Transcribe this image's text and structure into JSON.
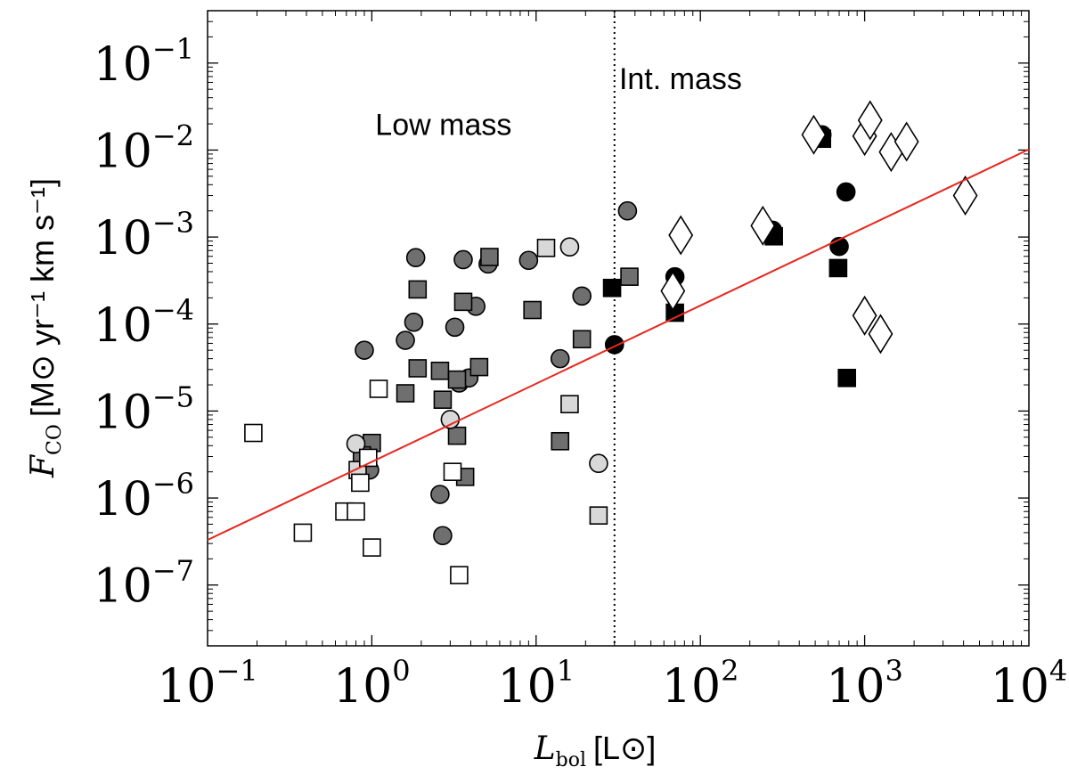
{
  "chart_data": {
    "type": "scatter",
    "xscale": "log",
    "yscale": "log",
    "xlim": [
      0.1,
      10000
    ],
    "ylim": [
      2e-08,
      0.4
    ],
    "xlabel": {
      "main": "L",
      "sub": "bol",
      "unit": "[L⊙]"
    },
    "ylabel": {
      "main": "F",
      "sub": "CO",
      "unit": "[M⊙ yr⁻¹ km s⁻¹]"
    },
    "x_ticks": [
      {
        "value": 0.1,
        "base": "10",
        "exp": "−1"
      },
      {
        "value": 1,
        "base": "10",
        "exp": "0"
      },
      {
        "value": 10,
        "base": "10",
        "exp": "1"
      },
      {
        "value": 100,
        "base": "10",
        "exp": "2"
      },
      {
        "value": 1000,
        "base": "10",
        "exp": "3"
      },
      {
        "value": 10000,
        "base": "10",
        "exp": "4"
      }
    ],
    "y_ticks": [
      {
        "value": 1e-07,
        "base": "10",
        "exp": "−7"
      },
      {
        "value": 1e-06,
        "base": "10",
        "exp": "−6"
      },
      {
        "value": 1e-05,
        "base": "10",
        "exp": "−5"
      },
      {
        "value": 0.0001,
        "base": "10",
        "exp": "−4"
      },
      {
        "value": 0.001,
        "base": "10",
        "exp": "−3"
      },
      {
        "value": 0.01,
        "base": "10",
        "exp": "−2"
      },
      {
        "value": 0.1,
        "base": "10",
        "exp": "−1"
      }
    ],
    "divider": {
      "x": 30
    },
    "annotations": [
      {
        "id": "low-mass-label",
        "text": "Low mass",
        "x": 1.05,
        "y": 0.015
      },
      {
        "id": "int-mass-label",
        "text": "Int. mass",
        "x": 32,
        "y": 0.05
      }
    ],
    "fit_line": {
      "name": "fit",
      "color": "#e8271e",
      "x": [
        0.1,
        10000
      ],
      "y": [
        3.3e-07,
        0.0102
      ]
    },
    "series": [
      {
        "name": "low-mass-circles-gray",
        "marker": "circle",
        "fill": "#6f6f6f",
        "stroke": "#000000",
        "points": [
          {
            "x": 0.9,
            "y": 5e-05
          },
          {
            "x": 1.6,
            "y": 6.5e-05
          },
          {
            "x": 1.8,
            "y": 0.000105
          },
          {
            "x": 1.85,
            "y": 0.00058
          },
          {
            "x": 3.2,
            "y": 9.2e-05
          },
          {
            "x": 3.6,
            "y": 0.00055
          },
          {
            "x": 4.3,
            "y": 0.00016
          },
          {
            "x": 5.1,
            "y": 0.00049
          },
          {
            "x": 9,
            "y": 0.00054
          },
          {
            "x": 14,
            "y": 4e-05
          },
          {
            "x": 19,
            "y": 0.00021
          },
          {
            "x": 3.4,
            "y": 2.1e-05
          },
          {
            "x": 3.9,
            "y": 2.4e-05
          },
          {
            "x": 2.6,
            "y": 1.1e-06
          },
          {
            "x": 2.7,
            "y": 3.7e-07
          },
          {
            "x": 0.97,
            "y": 2.1e-06
          },
          {
            "x": 36,
            "y": 0.002
          }
        ]
      },
      {
        "name": "low-mass-squares-gray",
        "marker": "square",
        "fill": "#6f6f6f",
        "stroke": "#000000",
        "points": [
          {
            "x": 1.9,
            "y": 0.00025
          },
          {
            "x": 1.9,
            "y": 3.1e-05
          },
          {
            "x": 1.6,
            "y": 1.6e-05
          },
          {
            "x": 2.6,
            "y": 2.9e-05
          },
          {
            "x": 2.7,
            "y": 1.35e-05
          },
          {
            "x": 3.3,
            "y": 2.3e-05
          },
          {
            "x": 3.3,
            "y": 5.2e-06
          },
          {
            "x": 3.6,
            "y": 0.00018
          },
          {
            "x": 3.7,
            "y": 1.75e-06
          },
          {
            "x": 4.5,
            "y": 3.2e-05
          },
          {
            "x": 5.2,
            "y": 0.00059
          },
          {
            "x": 9.5,
            "y": 0.000145
          },
          {
            "x": 14,
            "y": 4.5e-06
          },
          {
            "x": 19,
            "y": 6.7e-05
          },
          {
            "x": 37,
            "y": 0.00035
          },
          {
            "x": 1.0,
            "y": 4.3e-06
          },
          {
            "x": 0.87,
            "y": 3.1e-06
          }
        ]
      },
      {
        "name": "low-mass-circles-light",
        "marker": "circle",
        "fill": "#d8d8d8",
        "stroke": "#000000",
        "points": [
          {
            "x": 0.8,
            "y": 4.2e-06
          },
          {
            "x": 3.0,
            "y": 8e-06
          },
          {
            "x": 16,
            "y": 0.00077
          },
          {
            "x": 24,
            "y": 2.5e-06
          }
        ]
      },
      {
        "name": "low-mass-squares-light",
        "marker": "square",
        "fill": "#d8d8d8",
        "stroke": "#000000",
        "points": [
          {
            "x": 11.5,
            "y": 0.00075
          },
          {
            "x": 16,
            "y": 1.2e-05
          },
          {
            "x": 24,
            "y": 6.3e-07
          },
          {
            "x": 0.82,
            "y": 2.1e-06
          }
        ]
      },
      {
        "name": "low-mass-squares-open",
        "marker": "square",
        "fill": "#ffffff",
        "stroke": "#000000",
        "points": [
          {
            "x": 0.19,
            "y": 5.6e-06
          },
          {
            "x": 0.38,
            "y": 4e-07
          },
          {
            "x": 0.68,
            "y": 7e-07
          },
          {
            "x": 0.8,
            "y": 7e-07
          },
          {
            "x": 0.85,
            "y": 1.5e-06
          },
          {
            "x": 1.0,
            "y": 2.7e-07
          },
          {
            "x": 1.1,
            "y": 1.8e-05
          },
          {
            "x": 3.1,
            "y": 2e-06
          },
          {
            "x": 3.4,
            "y": 1.3e-07
          },
          {
            "x": 0.95,
            "y": 2.9e-06
          }
        ]
      },
      {
        "name": "int-mass-circles-black",
        "marker": "circle",
        "fill": "#000000",
        "stroke": "#000000",
        "points": [
          {
            "x": 30,
            "y": 5.8e-05
          },
          {
            "x": 70,
            "y": 0.00035
          },
          {
            "x": 275,
            "y": 0.0012
          },
          {
            "x": 550,
            "y": 0.015
          },
          {
            "x": 700,
            "y": 0.00078
          },
          {
            "x": 770,
            "y": 0.0033
          }
        ]
      },
      {
        "name": "int-mass-squares-black",
        "marker": "square",
        "fill": "#000000",
        "stroke": "#000000",
        "points": [
          {
            "x": 29,
            "y": 0.00026
          },
          {
            "x": 70,
            "y": 0.000135
          },
          {
            "x": 280,
            "y": 0.00102
          },
          {
            "x": 550,
            "y": 0.0135
          },
          {
            "x": 690,
            "y": 0.00044
          },
          {
            "x": 780,
            "y": 2.4e-05
          }
        ]
      },
      {
        "name": "int-mass-diamonds-open",
        "marker": "diamond",
        "fill": "#ffffff",
        "stroke": "#000000",
        "points": [
          {
            "x": 68,
            "y": 0.00024
          },
          {
            "x": 76,
            "y": 0.00105
          },
          {
            "x": 240,
            "y": 0.00135
          },
          {
            "x": 490,
            "y": 0.015
          },
          {
            "x": 1000,
            "y": 0.0145
          },
          {
            "x": 1080,
            "y": 0.022
          },
          {
            "x": 1450,
            "y": 0.0095
          },
          {
            "x": 1800,
            "y": 0.0125
          },
          {
            "x": 4100,
            "y": 0.003
          },
          {
            "x": 1000,
            "y": 0.000125
          },
          {
            "x": 1250,
            "y": 7.7e-05
          }
        ]
      }
    ]
  }
}
